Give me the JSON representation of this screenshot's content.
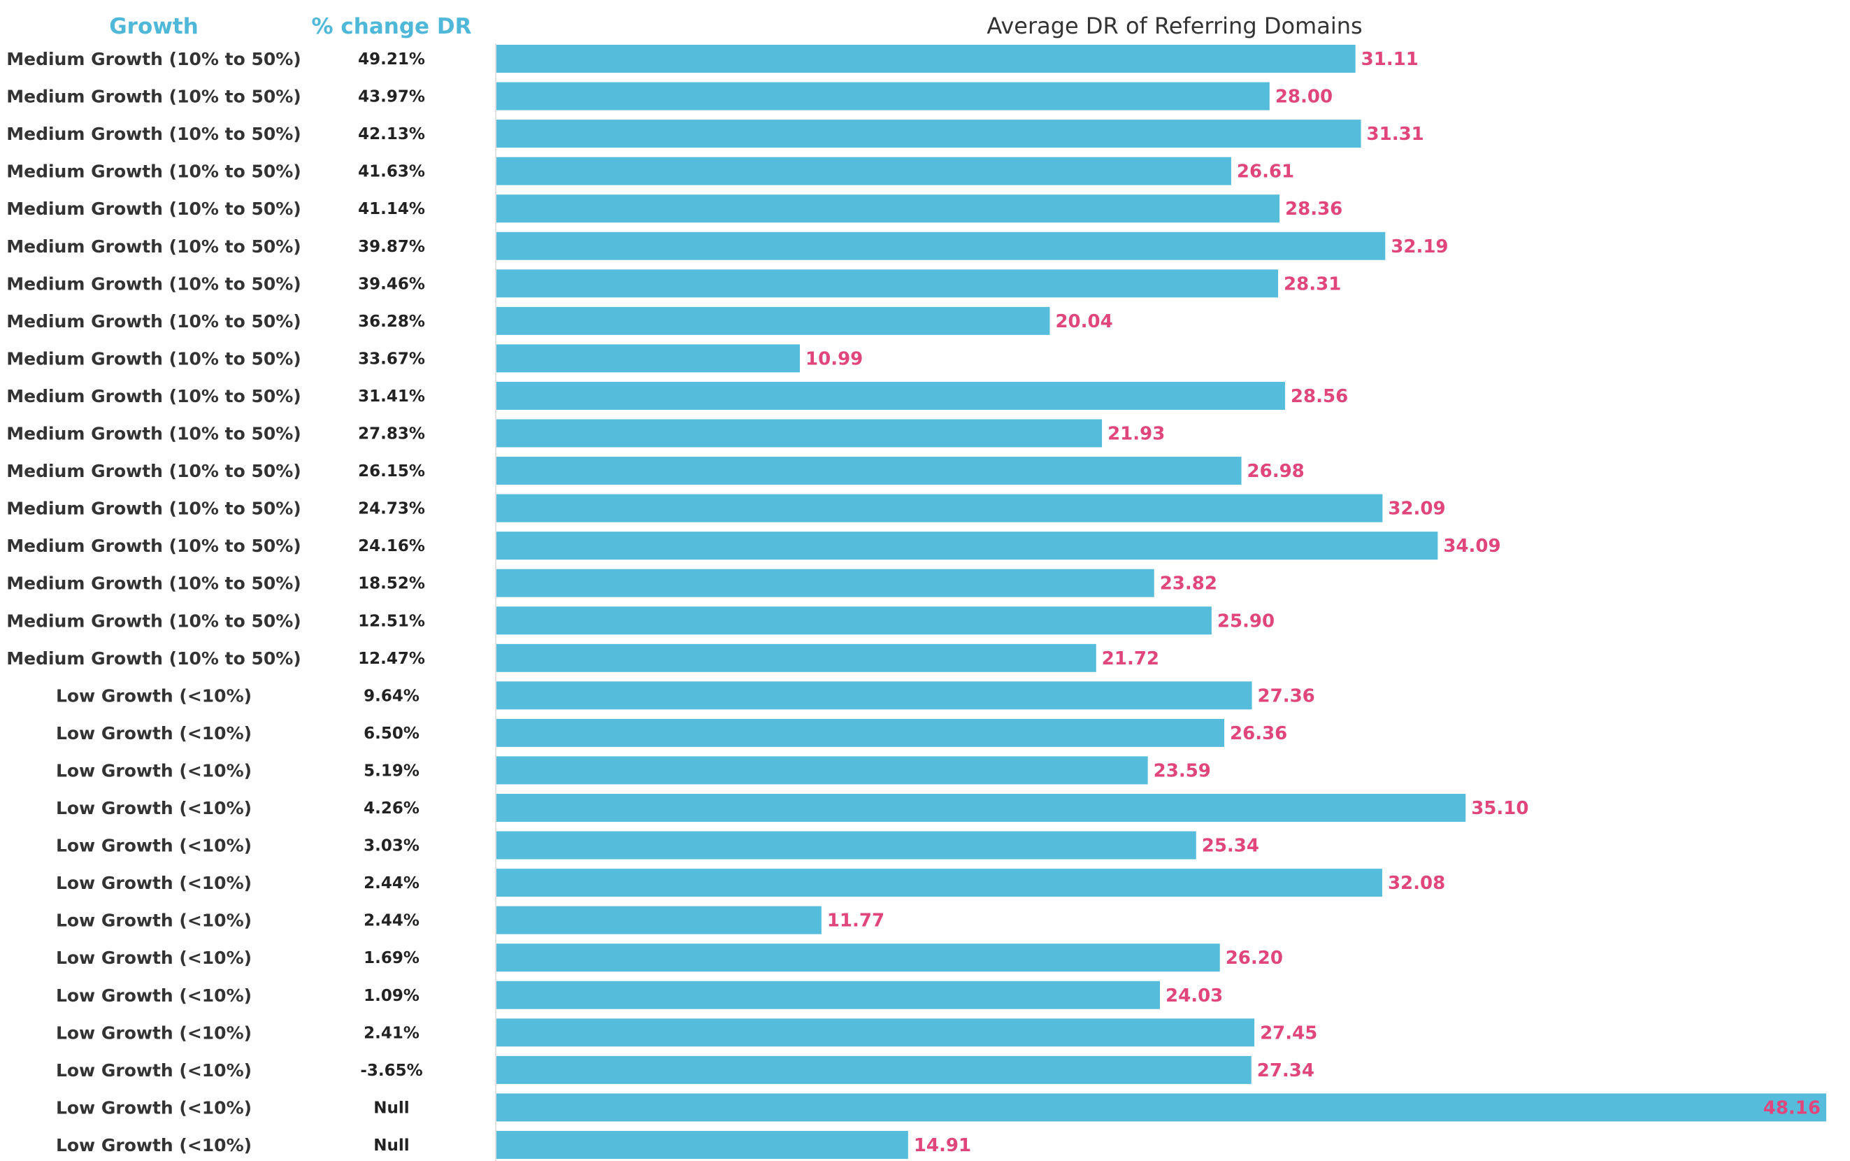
{
  "headers": {
    "growth": "Growth",
    "pct_change": "% change DR"
  },
  "colors": {
    "bar": "#56bcdb",
    "value_label": "#e0457b",
    "header": "#4fb8d8",
    "axis_line": "#d9d9d9"
  },
  "chart_data": {
    "type": "bar",
    "orientation": "horizontal",
    "title": "Average DR of Referring Domains",
    "xlabel": "",
    "ylabel": "",
    "xlim": [
      0,
      48.16
    ],
    "grid": false,
    "legend": "none",
    "value_format": "2 decimals",
    "categories": [
      "Medium Growth (10% to 50%)",
      "Medium Growth (10% to 50%)",
      "Medium Growth (10% to 50%)",
      "Medium Growth (10% to 50%)",
      "Medium Growth (10% to 50%)",
      "Medium Growth (10% to 50%)",
      "Medium Growth (10% to 50%)",
      "Medium Growth (10% to 50%)",
      "Medium Growth (10% to 50%)",
      "Medium Growth (10% to 50%)",
      "Medium Growth (10% to 50%)",
      "Medium Growth (10% to 50%)",
      "Medium Growth (10% to 50%)",
      "Medium Growth (10% to 50%)",
      "Medium Growth (10% to 50%)",
      "Medium Growth (10% to 50%)",
      "Medium Growth (10% to 50%)",
      "Low Growth (<10%)",
      "Low Growth (<10%)",
      "Low Growth (<10%)",
      "Low Growth (<10%)",
      "Low Growth (<10%)",
      "Low Growth (<10%)",
      "Low Growth (<10%)",
      "Low Growth (<10%)",
      "Low Growth (<10%)",
      "Low Growth (<10%)",
      "Low Growth (<10%)",
      "Low Growth (<10%)",
      "Low Growth (<10%)"
    ],
    "pct_change": [
      "49.21%",
      "43.97%",
      "42.13%",
      "41.63%",
      "41.14%",
      "39.87%",
      "39.46%",
      "36.28%",
      "33.67%",
      "31.41%",
      "27.83%",
      "26.15%",
      "24.73%",
      "24.16%",
      "18.52%",
      "12.51%",
      "12.47%",
      "9.64%",
      "6.50%",
      "5.19%",
      "4.26%",
      "3.03%",
      "2.44%",
      "2.44%",
      "1.69%",
      "1.09%",
      "2.41%",
      "-3.65%",
      "Null",
      "Null"
    ],
    "values": [
      31.11,
      28.0,
      31.31,
      26.61,
      28.36,
      32.19,
      28.31,
      20.04,
      10.99,
      28.56,
      21.93,
      26.98,
      32.09,
      34.09,
      23.82,
      25.9,
      21.72,
      27.36,
      26.36,
      23.59,
      35.1,
      25.34,
      32.08,
      11.77,
      26.2,
      24.03,
      27.45,
      27.34,
      48.16,
      14.91
    ]
  }
}
